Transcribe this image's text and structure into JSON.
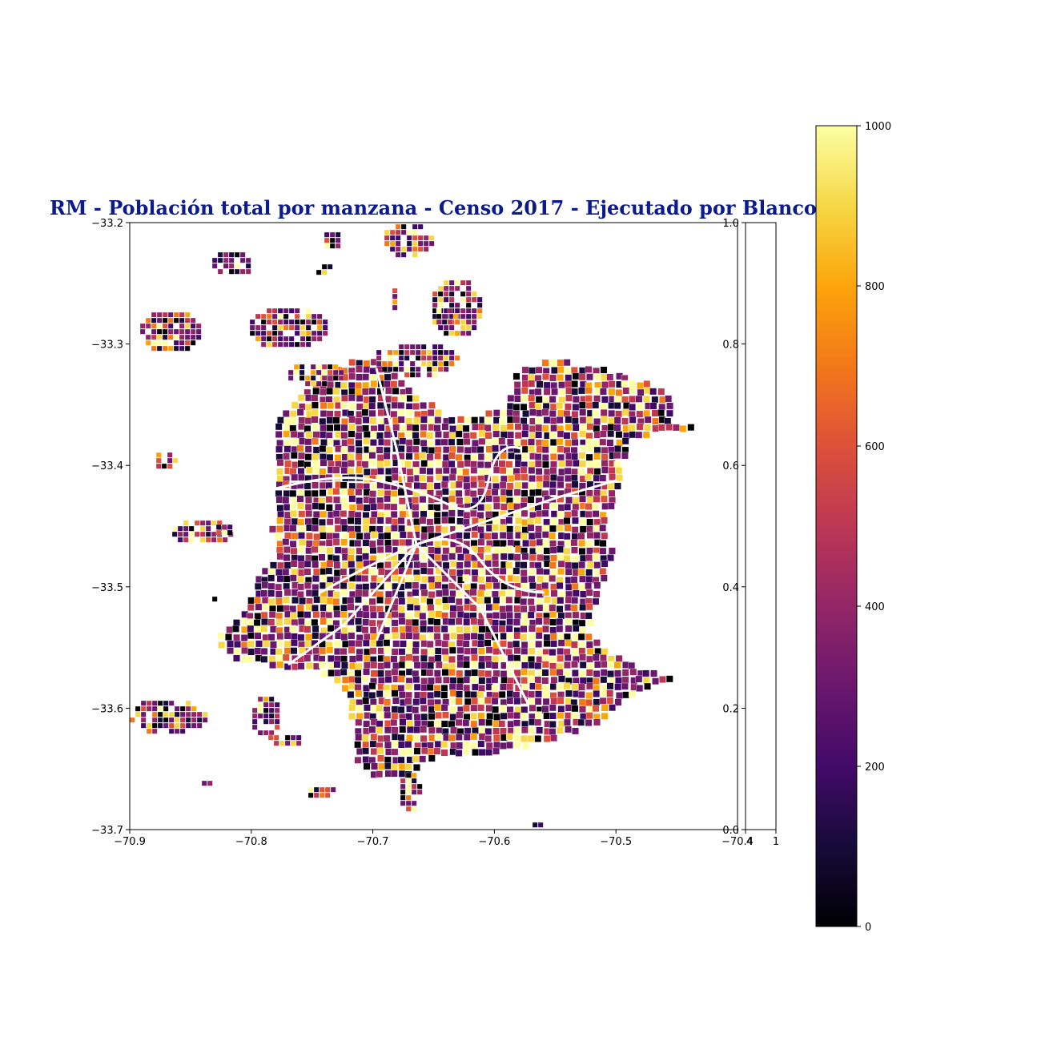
{
  "figure": {
    "title": "RM - Población total por manzana - Censo 2017 - Ejecutado por Blanco",
    "title_color": "#0b1a8c"
  },
  "map": {
    "xlim": [
      -70.9,
      -70.4
    ],
    "ylim": [
      -33.7,
      -33.2
    ],
    "x_ticks": [
      "−70.9",
      "−70.8",
      "−70.7",
      "−70.6",
      "−70.5",
      "−70.4"
    ],
    "y_ticks": [
      "−33.2",
      "−33.3",
      "−33.4",
      "−33.5",
      "−33.6",
      "−33.7"
    ],
    "colormap": "inferno",
    "value_range": [
      0,
      1000
    ]
  },
  "inset_axes": {
    "y_ticks": [
      "1.0",
      "0.8",
      "0.6",
      "0.4",
      "0.2",
      "0.0"
    ],
    "x_ticks": [
      "4",
      "1"
    ]
  },
  "colorbar": {
    "ticks": [
      "1000",
      "800",
      "600",
      "400",
      "200",
      "0"
    ],
    "range": [
      0,
      1000
    ]
  }
}
